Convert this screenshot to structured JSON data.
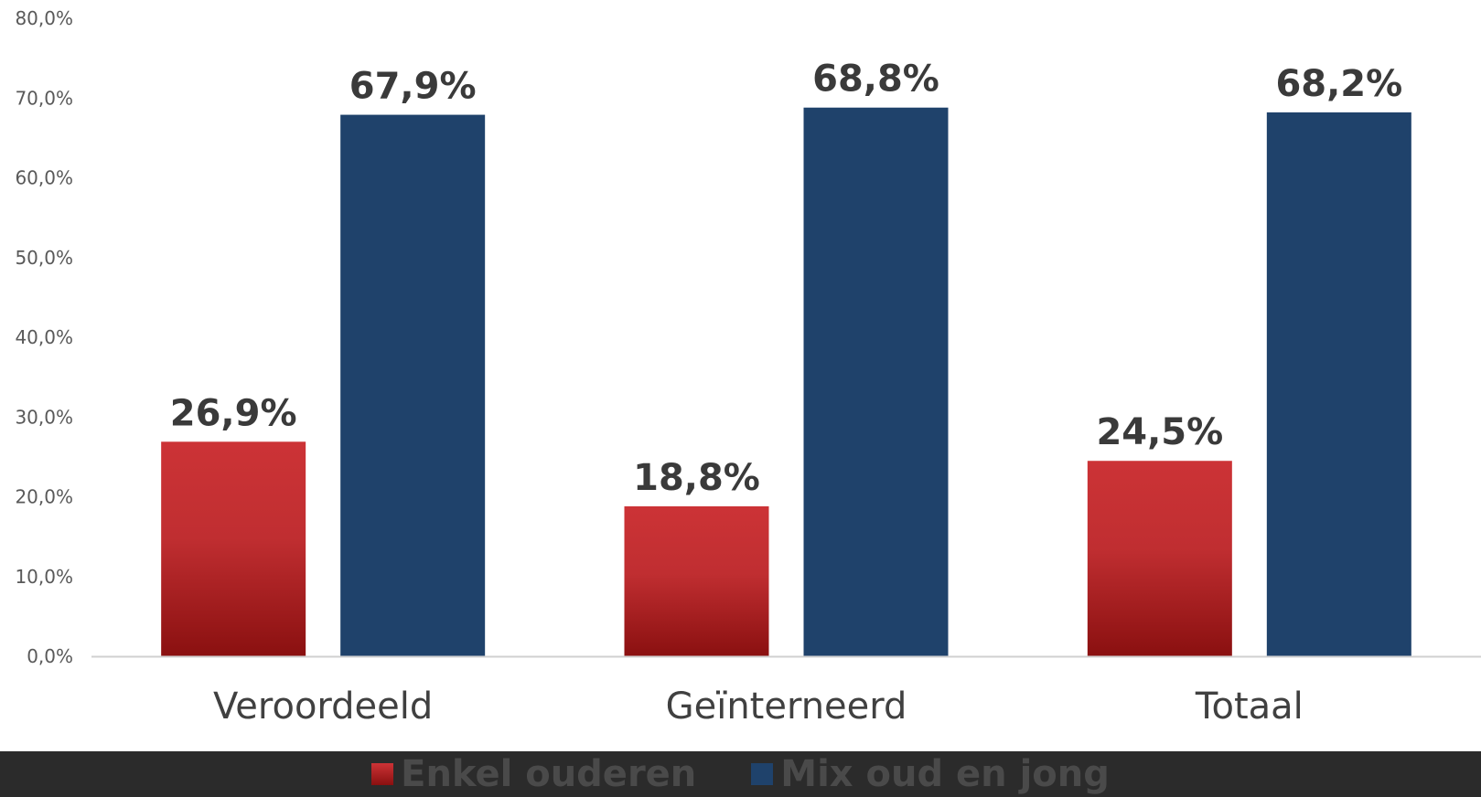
{
  "chart_data": {
    "type": "bar",
    "categories": [
      "Veroordeeld",
      "Geïnterneerd",
      "Totaal"
    ],
    "series": [
      {
        "name": "Enkel ouderen",
        "values": [
          26.9,
          18.8,
          24.5
        ],
        "labels": [
          "26,9%",
          "18,8%",
          "24,5%"
        ],
        "color": "#c62f33"
      },
      {
        "name": "Mix oud en jong",
        "values": [
          67.9,
          68.8,
          68.2
        ],
        "labels": [
          "67,9%",
          "68,8%",
          "68,2%"
        ],
        "color": "#1f426b"
      }
    ],
    "ylim": [
      0,
      80
    ],
    "yticks": [
      "0,0%",
      "10,0%",
      "20,0%",
      "30,0%",
      "40,0%",
      "50,0%",
      "60,0%",
      "70,0%",
      "80,0%"
    ],
    "legend_position": "bottom",
    "grid": false
  }
}
